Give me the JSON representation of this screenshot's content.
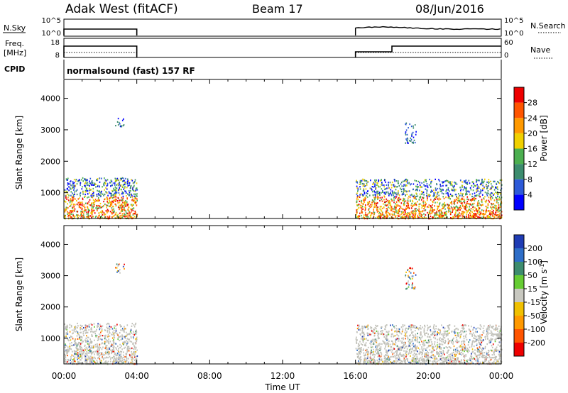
{
  "header": {
    "station": "Adak West (fitACF)",
    "beam": "Beam 17",
    "date": "08/Jun/2016"
  },
  "panels": {
    "nsky": {
      "left_label": "N.Sky",
      "ticks_left": [
        "10^5",
        "10^0"
      ],
      "right_label": "N.Search",
      "ticks_right": [
        "10^5",
        "10^0"
      ]
    },
    "freq": {
      "left_label_1": "Freq.",
      "left_label_2": "[MHz]",
      "ticks_left": [
        "18",
        "8"
      ],
      "right_label": "Nave",
      "ticks_right": [
        "60",
        "0"
      ]
    },
    "cpid": {
      "label": "CPID",
      "mode": "normalsound (fast) 157 RF"
    }
  },
  "chart_data": [
    {
      "type": "heatmap",
      "name": "power",
      "ylabel": "Slant Range [km]",
      "xlabel": "Time UT",
      "x_ticks": [
        "00:00",
        "04:00",
        "08:00",
        "12:00",
        "16:00",
        "20:00",
        "00:00"
      ],
      "xlim_hours": [
        0,
        24
      ],
      "y_ticks": [
        1000,
        2000,
        3000,
        4000
      ],
      "ylim_km": [
        180,
        4600
      ],
      "colorbar": {
        "label": "Power [dB]",
        "ticks": [
          4,
          8,
          12,
          16,
          20,
          24,
          28
        ],
        "colors": [
          "#0000ff",
          "#2d5ad8",
          "#3c8c6e",
          "#4caf50",
          "#f0d000",
          "#ff9900",
          "#ff5500",
          "#ee0000"
        ],
        "range": [
          0,
          30
        ]
      },
      "data_gaps_hours": [
        [
          4.0,
          16.0
        ]
      ],
      "scatter_regions": [
        {
          "t": [
            0.0,
            4.0
          ],
          "range_km": [
            200,
            1500
          ],
          "level_db": [
            4,
            26
          ]
        },
        {
          "t": [
            2.8,
            3.3
          ],
          "range_km": [
            3100,
            3400
          ],
          "level_db": [
            4,
            10
          ]
        },
        {
          "t": [
            16.0,
            24.0
          ],
          "range_km": [
            200,
            1450
          ],
          "level_db": [
            4,
            28
          ]
        },
        {
          "t": [
            18.7,
            19.3
          ],
          "range_km": [
            2600,
            3300
          ],
          "level_db": [
            4,
            12
          ]
        }
      ]
    },
    {
      "type": "heatmap",
      "name": "velocity",
      "ylabel": "Slant Range [km]",
      "xlabel": "Time UT",
      "x_ticks": [
        "00:00",
        "04:00",
        "08:00",
        "12:00",
        "16:00",
        "20:00",
        "00:00"
      ],
      "xlim_hours": [
        0,
        24
      ],
      "y_ticks": [
        1000,
        2000,
        3000,
        4000
      ],
      "ylim_km": [
        180,
        4600
      ],
      "colorbar": {
        "label": "Velocity [m s^-1]",
        "ticks": [
          200,
          100,
          50,
          15,
          -15,
          -50,
          -100,
          -200
        ],
        "colors": [
          "#1f3cb4",
          "#2e6ec8",
          "#3d8c6e",
          "#66cc33",
          "#c8c8c0",
          "#f0c000",
          "#ff9900",
          "#ff5500",
          "#ee0000"
        ],
        "ground_scatter_color": "#c0c0b8"
      },
      "data_gaps_hours": [
        [
          4.0,
          16.0
        ]
      ],
      "scatter_regions": [
        {
          "t": [
            0.0,
            4.0
          ],
          "range_km": [
            200,
            1500
          ],
          "kind": "ground"
        },
        {
          "t": [
            2.8,
            3.3
          ],
          "range_km": [
            3100,
            3400
          ],
          "kind": "ionospheric"
        },
        {
          "t": [
            16.0,
            24.0
          ],
          "range_km": [
            200,
            1450
          ],
          "kind": "ground"
        },
        {
          "t": [
            18.7,
            19.3
          ],
          "range_km": [
            2600,
            3300
          ],
          "kind": "ionospheric"
        }
      ]
    }
  ]
}
